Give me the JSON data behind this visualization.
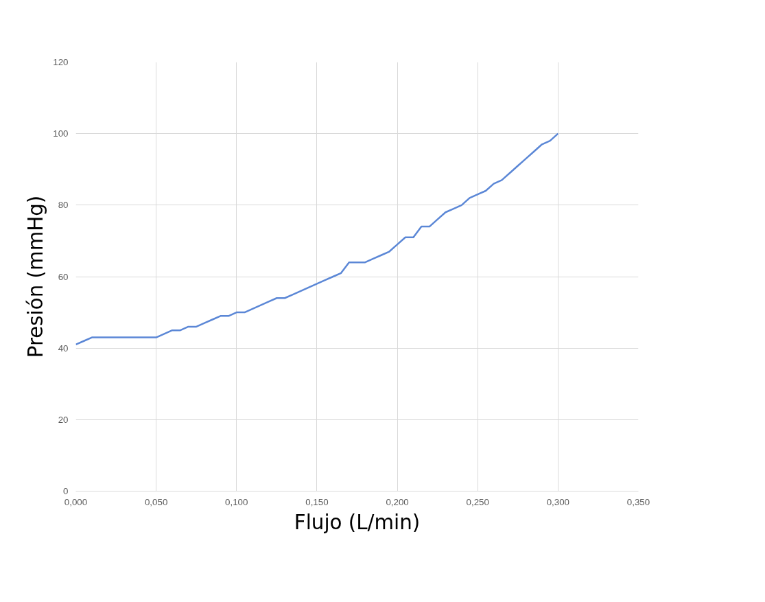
{
  "chart_data": {
    "type": "line",
    "xlabel": "Flujo (L/min)",
    "ylabel": "Presión (mmHg)",
    "x": [
      0,
      0.005,
      0.01,
      0.015,
      0.02,
      0.025,
      0.03,
      0.035,
      0.04,
      0.045,
      0.05,
      0.055,
      0.06,
      0.065,
      0.07,
      0.075,
      0.08,
      0.085,
      0.09,
      0.095,
      0.1,
      0.105,
      0.11,
      0.115,
      0.12,
      0.125,
      0.13,
      0.135,
      0.14,
      0.145,
      0.15,
      0.155,
      0.16,
      0.165,
      0.17,
      0.175,
      0.18,
      0.185,
      0.19,
      0.195,
      0.2,
      0.205,
      0.21,
      0.215,
      0.22,
      0.225,
      0.23,
      0.235,
      0.24,
      0.245,
      0.25,
      0.255,
      0.26,
      0.265,
      0.27,
      0.275,
      0.28,
      0.285,
      0.29,
      0.295,
      0.3
    ],
    "series": [
      {
        "color": "#5b87d6",
        "values": [
          41,
          42,
          43,
          43,
          43,
          43,
          43,
          43,
          43,
          43,
          43,
          44,
          45,
          45,
          46,
          46,
          47,
          48,
          49,
          49,
          50,
          50,
          51,
          52,
          53,
          54,
          54,
          55,
          56,
          57,
          58,
          59,
          60,
          61,
          64,
          64,
          64,
          65,
          66,
          67,
          69,
          71,
          71,
          74,
          74,
          76,
          78,
          79,
          80,
          82,
          83,
          84,
          86,
          87,
          89,
          91,
          93,
          95,
          97,
          98,
          100
        ]
      }
    ],
    "xlim": [
      0,
      0.35
    ],
    "ylim": [
      0,
      120
    ],
    "xticks": [
      {
        "value": 0,
        "label": "0,000"
      },
      {
        "value": 0.05,
        "label": "0,050"
      },
      {
        "value": 0.1,
        "label": "0,100"
      },
      {
        "value": 0.15,
        "label": "0,150"
      },
      {
        "value": 0.2,
        "label": "0,200"
      },
      {
        "value": 0.25,
        "label": "0,250"
      },
      {
        "value": 0.3,
        "label": "0,300"
      },
      {
        "value": 0.35,
        "label": "0,350"
      }
    ],
    "yticks": [
      0,
      20,
      40,
      60,
      80,
      100,
      120
    ],
    "grid": true
  }
}
